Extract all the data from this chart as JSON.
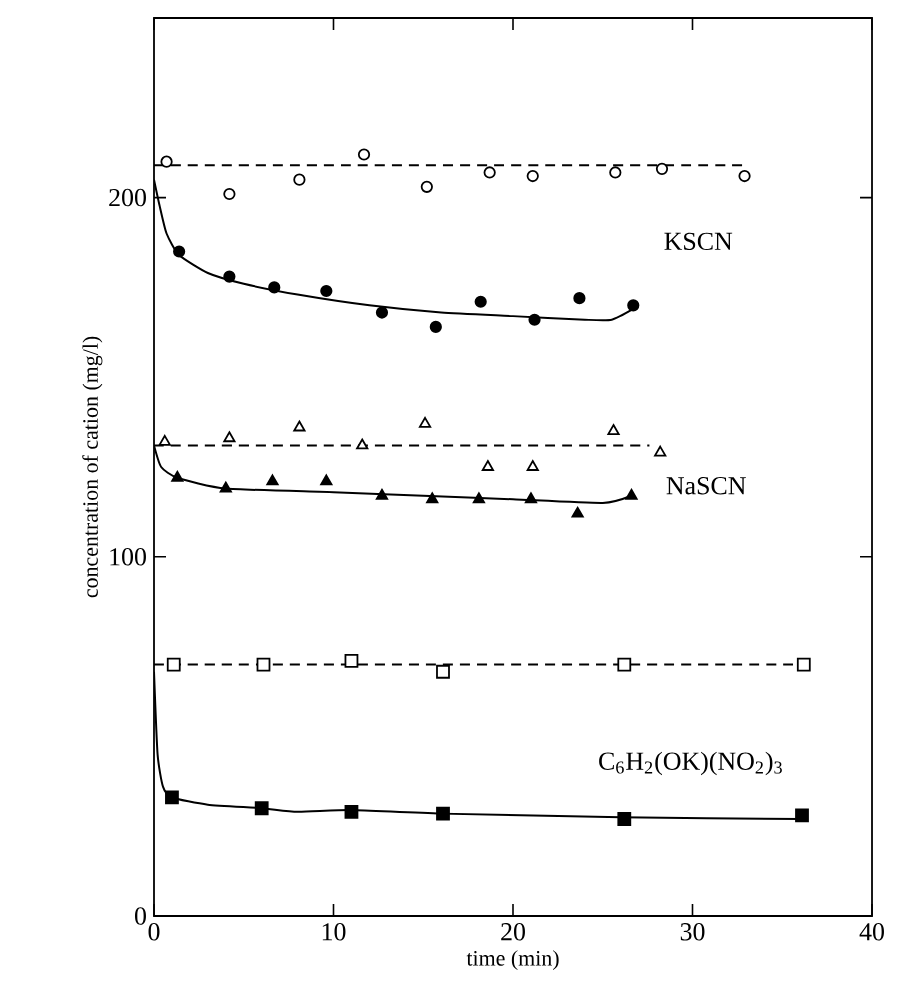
{
  "chart_data": {
    "type": "scatter",
    "xlabel": "time (min)",
    "ylabel": "concentration of cation (mg/l)",
    "xlim": [
      0,
      40
    ],
    "ylim": [
      0,
      250
    ],
    "xticks": [
      0,
      10,
      20,
      30,
      40
    ],
    "yticks": [
      0,
      100,
      200
    ],
    "grid": false,
    "series": [
      {
        "marker": "circle",
        "color": "#ffffff",
        "x": [
          0.7,
          4.2,
          8.1,
          11.7,
          15.2,
          18.7,
          21.1,
          25.7,
          28.3,
          32.9
        ],
        "values": [
          210,
          201,
          205,
          212,
          203,
          207,
          206,
          207,
          208,
          206
        ]
      },
      {
        "type": "line",
        "line_style": "dashed",
        "color": "#000000",
        "x": [
          0,
          33
        ],
        "values": [
          209,
          209
        ]
      },
      {
        "name": "KSCN",
        "marker": "circle",
        "color": "#000000",
        "x": [
          1.4,
          4.2,
          6.7,
          9.6,
          12.7,
          15.7,
          18.2,
          21.2,
          23.7,
          26.7
        ],
        "values": [
          185,
          178,
          175,
          174,
          168,
          164,
          171,
          166,
          172,
          170
        ]
      },
      {
        "type": "line",
        "line_style": "solid",
        "color": "#000000",
        "x": [
          0,
          0.3,
          0.7,
          1.4,
          3,
          5,
          8,
          12,
          16,
          20,
          24,
          25.5,
          26.7
        ],
        "values": [
          205,
          198,
          190,
          184,
          179,
          176,
          173,
          170,
          168,
          167,
          166,
          166,
          169
        ]
      },
      {
        "marker": "triangle",
        "color": "#ffffff",
        "x": [
          0.6,
          4.2,
          8.1,
          11.6,
          15.1,
          18.6,
          21.1,
          25.6,
          28.2
        ],
        "values": [
          132,
          133,
          136,
          131,
          137,
          125,
          125,
          135,
          129
        ]
      },
      {
        "type": "line",
        "line_style": "dashed",
        "color": "#000000",
        "x": [
          0,
          27.6
        ],
        "values": [
          131,
          131
        ]
      },
      {
        "name": "NaSCN",
        "marker": "triangle",
        "color": "#000000",
        "x": [
          1.3,
          4.0,
          6.6,
          9.6,
          12.7,
          15.5,
          18.1,
          21.0,
          23.6,
          26.6
        ],
        "values": [
          122,
          119,
          121,
          121,
          117,
          116,
          116,
          116,
          112,
          117
        ]
      },
      {
        "type": "line",
        "line_style": "solid",
        "color": "#000000",
        "x": [
          0,
          0.4,
          1.3,
          4,
          10,
          15,
          20,
          25,
          26.6
        ],
        "values": [
          131,
          125,
          122,
          119,
          118,
          117,
          116,
          115,
          117
        ]
      },
      {
        "marker": "square",
        "color": "#ffffff",
        "x": [
          1.1,
          6.1,
          11.0,
          16.1,
          26.2,
          36.2
        ],
        "values": [
          70,
          70,
          71,
          68,
          70,
          70
        ]
      },
      {
        "type": "line",
        "line_style": "dashed",
        "color": "#000000",
        "x": [
          0,
          36
        ],
        "values": [
          70,
          70
        ]
      },
      {
        "name": "C$_{6}$H$_{2}$(OK)(NO$_{2}$)$_{3}$",
        "marker": "square",
        "color": "#000000",
        "x": [
          1.0,
          6.0,
          11.0,
          16.1,
          26.2,
          36.1
        ],
        "values": [
          33,
          30,
          29,
          28.5,
          27,
          28
        ]
      },
      {
        "type": "line",
        "line_style": "solid",
        "color": "#000000",
        "x": [
          0,
          0.2,
          0.5,
          1,
          3,
          6,
          8,
          11,
          16,
          26,
          36
        ],
        "values": [
          68,
          45,
          36,
          33,
          31,
          30,
          29,
          29.5,
          28.5,
          27.5,
          27
        ]
      }
    ]
  }
}
